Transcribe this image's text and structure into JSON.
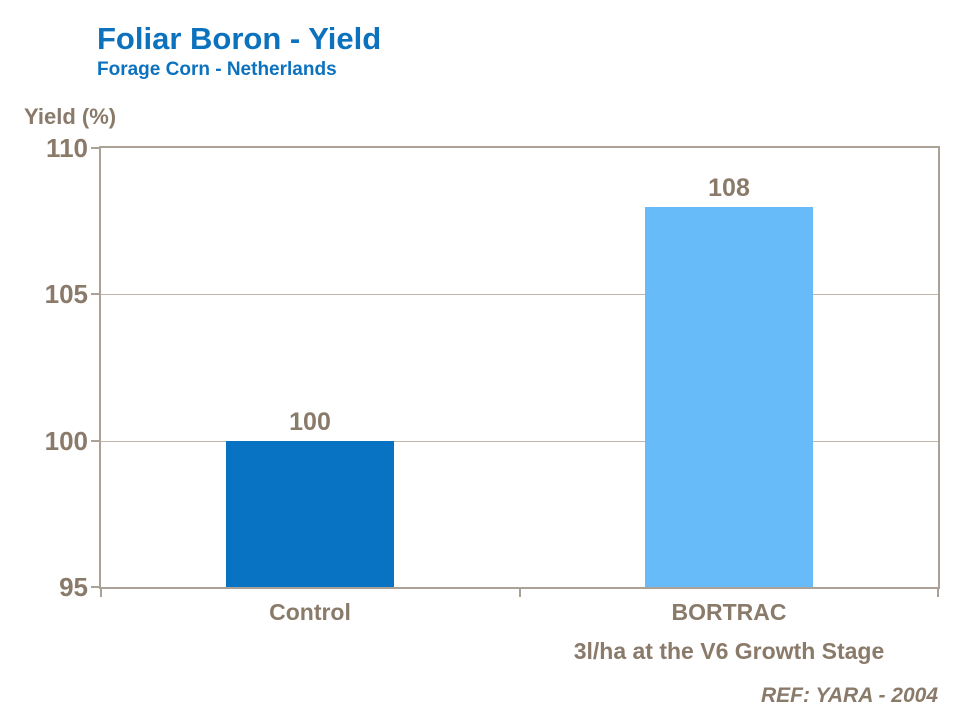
{
  "colors": {
    "title_blue": "#0D72BE",
    "text_brown": "#8A7A6A",
    "axis_line": "#ACA196",
    "gridline": "#BFB5AA",
    "bar_control": "#0873C2",
    "bar_bortrac": "#66BBF8"
  },
  "chart_data": {
    "type": "bar",
    "title": "Foliar Boron - Yield",
    "subtitle": "Forage Corn - Netherlands",
    "ylabel": "Yield (%)",
    "xlabel": "",
    "categories": [
      "Control",
      "BORTRAC"
    ],
    "category_sublabels": [
      "",
      "3l/ha at the V6 Growth Stage"
    ],
    "values": [
      100,
      108
    ],
    "data_labels": [
      "100",
      "108"
    ],
    "bar_colors": [
      "#0873C2",
      "#66BBF8"
    ],
    "yticks": [
      95,
      100,
      105,
      110
    ],
    "ylim": [
      95,
      110
    ],
    "grid": true,
    "legend": false,
    "reference": "REF: YARA - 2004"
  }
}
